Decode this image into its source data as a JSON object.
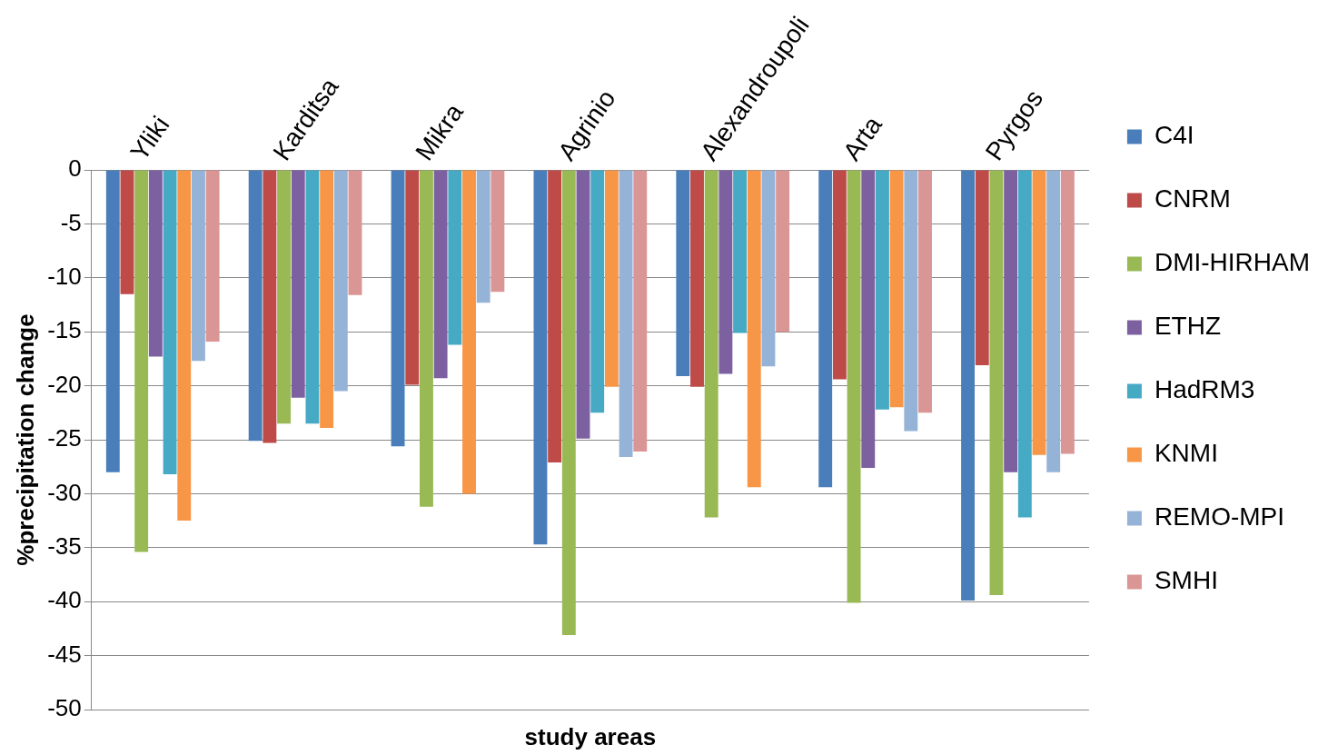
{
  "chart_data": {
    "type": "bar",
    "xlabel": "study areas",
    "ylabel": "%precipitation change",
    "categories": [
      "Yliki",
      "Karditsa",
      "Mikra",
      "Agrinio",
      "Alexandroupoli",
      "Arta",
      "Pyrgos"
    ],
    "series": [
      {
        "name": "C4I",
        "color": "#4a7ebb",
        "values": [
          -28,
          -25.1,
          -25.6,
          -34.7,
          -19.1,
          -29.4,
          -39.9
        ]
      },
      {
        "name": "CNRM",
        "color": "#be4b48",
        "values": [
          -11.5,
          -25.3,
          -19.9,
          -27.1,
          -20.1,
          -19.4,
          -18.1
        ]
      },
      {
        "name": "DMI-HIRHAM",
        "color": "#98b954",
        "values": [
          -35.4,
          -23.5,
          -31.2,
          -43.1,
          -32.2,
          -40.1,
          -39.4
        ]
      },
      {
        "name": "ETHZ",
        "color": "#7d60a0",
        "values": [
          -17.3,
          -21.1,
          -19.3,
          -24.9,
          -18.9,
          -27.6,
          -28
        ]
      },
      {
        "name": "HadRM3",
        "color": "#46aac5",
        "values": [
          -28.2,
          -23.5,
          -16.2,
          -22.5,
          -15.1,
          -22.2,
          -32.2
        ]
      },
      {
        "name": "KNMI",
        "color": "#f79646",
        "values": [
          -32.5,
          -23.9,
          -30,
          -20.1,
          -29.4,
          -22,
          -26.4
        ]
      },
      {
        "name": "REMO-MPI",
        "color": "#95b3d7",
        "values": [
          -17.7,
          -20.5,
          -12.3,
          -26.6,
          -18.2,
          -24.2,
          -28
        ]
      },
      {
        "name": "SMHI",
        "color": "#d99694",
        "values": [
          -15.9,
          -11.6,
          -11.3,
          -26.1,
          -15,
          -22.5,
          -26.3
        ]
      }
    ],
    "ylim": [
      -50,
      0
    ],
    "yticks": [
      -50,
      -45,
      -40,
      -35,
      -30,
      -25,
      -20,
      -15,
      -10,
      -5,
      0
    ],
    "grid": "y",
    "legend": "right"
  }
}
